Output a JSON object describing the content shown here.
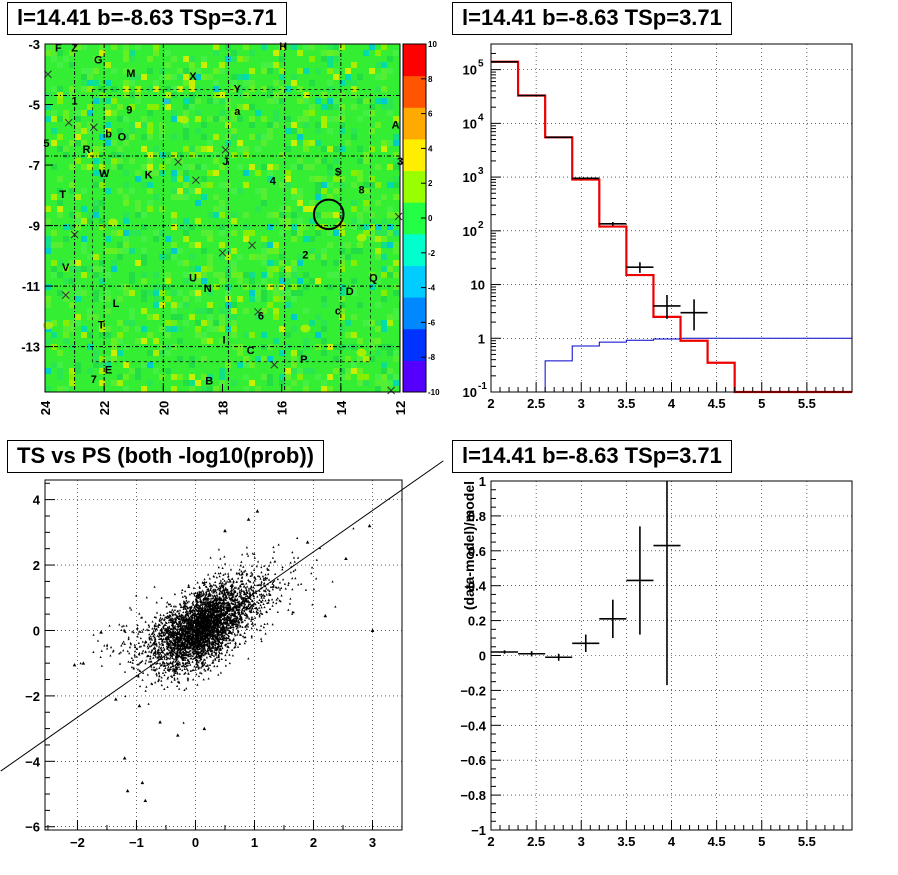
{
  "titles": {
    "map": "l=14.41 b=-8.63 TSp=3.71",
    "hist": "l=14.41 b=-8.63 TSp=3.71",
    "scatter": "TS vs PS (both -log10(prob))",
    "residual": "l=14.41 b=-8.63 TSp=3.71"
  },
  "chart_data": [
    {
      "type": "heatmap",
      "title": "l=14.41 b=-8.63 TSp=3.71",
      "xlim": [
        24,
        12
      ],
      "ylim": [
        -14.5,
        -3
      ],
      "xticks": [
        "24",
        "22",
        "20",
        "18",
        "16",
        "14",
        "12"
      ],
      "yticks": [
        "-3",
        "-5",
        "-7",
        "-9",
        "-11",
        "-13"
      ],
      "zlim": [
        -10,
        10
      ],
      "zticks": [
        "10",
        "8",
        "6",
        "4",
        "2",
        "0",
        "-2",
        "-4",
        "-6",
        "-8",
        "-10"
      ],
      "palette": [
        "#5500ff",
        "#0033ff",
        "#0088ff",
        "#00ccff",
        "#00ffcc",
        "#22ff44",
        "#99ff00",
        "#ffee00",
        "#ffaa00",
        "#ff5500",
        "#ff0000"
      ],
      "source_labels": [
        {
          "t": "F",
          "l": 23.55,
          "b": -3.15
        },
        {
          "t": "Z",
          "l": 23.0,
          "b": -3.15
        },
        {
          "t": "H",
          "l": 15.95,
          "b": -3.1
        },
        {
          "t": "G",
          "l": 22.2,
          "b": -3.55
        },
        {
          "t": "M",
          "l": 21.1,
          "b": -4.0
        },
        {
          "t": "X",
          "l": 19.0,
          "b": -4.1
        },
        {
          "t": "Y",
          "l": 17.5,
          "b": -4.5
        },
        {
          "t": "1",
          "l": 23.0,
          "b": -4.9
        },
        {
          "t": "9",
          "l": 21.15,
          "b": -5.2
        },
        {
          "t": "a",
          "l": 17.5,
          "b": -5.25
        },
        {
          "t": "A",
          "l": 12.15,
          "b": -5.7
        },
        {
          "t": "5",
          "l": 23.95,
          "b": -6.3
        },
        {
          "t": "b",
          "l": 21.85,
          "b": -6.0
        },
        {
          "t": "O",
          "l": 21.4,
          "b": -6.1
        },
        {
          "t": "R",
          "l": 22.6,
          "b": -6.5
        },
        {
          "t": "J",
          "l": 17.9,
          "b": -6.9
        },
        {
          "t": "3",
          "l": 12.0,
          "b": -6.9
        },
        {
          "t": "W",
          "l": 22.0,
          "b": -7.3
        },
        {
          "t": "K",
          "l": 20.5,
          "b": -7.35
        },
        {
          "t": "$",
          "l": 14.1,
          "b": -7.25
        },
        {
          "t": "4",
          "l": 16.3,
          "b": -7.55
        },
        {
          "t": "8",
          "l": 13.3,
          "b": -7.85
        },
        {
          "t": "T",
          "l": 23.4,
          "b": -8.0
        },
        {
          "t": "2",
          "l": 15.2,
          "b": -10.0
        },
        {
          "t": "V",
          "l": 23.3,
          "b": -10.4
        },
        {
          "t": "U",
          "l": 19.0,
          "b": -10.75
        },
        {
          "t": "Q",
          "l": 12.9,
          "b": -10.75
        },
        {
          "t": "N",
          "l": 18.5,
          "b": -11.1
        },
        {
          "t": "D",
          "l": 13.7,
          "b": -11.2
        },
        {
          "t": "L",
          "l": 21.6,
          "b": -11.6
        },
        {
          "t": "c",
          "l": 14.1,
          "b": -11.85
        },
        {
          "t": "6",
          "l": 16.7,
          "b": -12.0
        },
        {
          "t": "T",
          "l": 22.1,
          "b": -12.3
        },
        {
          "t": "I",
          "l": 17.95,
          "b": -12.8
        },
        {
          "t": "C",
          "l": 17.05,
          "b": -13.15
        },
        {
          "t": "P",
          "l": 15.25,
          "b": -13.45
        },
        {
          "t": "E",
          "l": 21.85,
          "b": -13.8
        },
        {
          "t": "7",
          "l": 22.35,
          "b": -14.1
        },
        {
          "t": "B",
          "l": 18.45,
          "b": -14.15
        }
      ],
      "crosses": [
        {
          "l": 23.9,
          "b": -4.0
        },
        {
          "l": 23.2,
          "b": -5.6
        },
        {
          "l": 22.35,
          "b": -5.75
        },
        {
          "l": 17.9,
          "b": -6.5
        },
        {
          "l": 19.5,
          "b": -6.9
        },
        {
          "l": 18.9,
          "b": -7.5
        },
        {
          "l": 23.0,
          "b": -9.3
        },
        {
          "l": 12.05,
          "b": -8.7
        },
        {
          "l": 17.0,
          "b": -9.65
        },
        {
          "l": 18.0,
          "b": -9.9
        },
        {
          "l": 23.3,
          "b": -11.3
        },
        {
          "l": 16.8,
          "b": -11.85
        },
        {
          "l": 16.25,
          "b": -13.6
        },
        {
          "l": 12.3,
          "b": -14.45
        }
      ],
      "circle": {
        "l": 14.41,
        "b": -8.63,
        "r": 0.5
      }
    },
    {
      "type": "line",
      "title": "l=14.41 b=-8.63 TSp=3.71",
      "xlim": [
        2,
        6
      ],
      "ylim": [
        0.1,
        300000
      ],
      "yscale": "log",
      "xticks": [
        "2",
        "2.5",
        "3",
        "3.5",
        "4",
        "4.5",
        "5",
        "5.5"
      ],
      "yticks": [
        "10^-1",
        "1",
        "10",
        "10^2",
        "10^3",
        "10^4",
        "10^5"
      ],
      "grid": true,
      "model_red": {
        "edges": [
          2.0,
          2.3,
          2.6,
          2.9,
          3.2,
          3.5,
          3.8,
          4.1,
          4.4,
          4.7,
          6.0
        ],
        "values": [
          140000,
          33000,
          5500,
          900,
          120,
          15,
          2.5,
          0.9,
          0.35,
          0.1
        ]
      },
      "ps_blue": {
        "edges": [
          2.0,
          2.3,
          2.6,
          2.9,
          3.2,
          3.5,
          3.8,
          4.1,
          6.0
        ],
        "values": [
          0.1,
          0.1,
          0.38,
          0.72,
          0.85,
          0.92,
          0.97,
          1.0
        ]
      },
      "data_points": [
        {
          "x": 2.15,
          "y": 140000,
          "xerr": 0.15,
          "ylo": 139600,
          "yhi": 140400
        },
        {
          "x": 2.45,
          "y": 33000,
          "xerr": 0.15,
          "ylo": 32800,
          "yhi": 33200
        },
        {
          "x": 2.75,
          "y": 5500,
          "xerr": 0.15,
          "ylo": 5420,
          "yhi": 5580
        },
        {
          "x": 3.05,
          "y": 950,
          "xerr": 0.15,
          "ylo": 920,
          "yhi": 980
        },
        {
          "x": 3.35,
          "y": 135,
          "xerr": 0.15,
          "ylo": 124,
          "yhi": 146
        },
        {
          "x": 3.65,
          "y": 21,
          "xerr": 0.15,
          "ylo": 16.5,
          "yhi": 26
        },
        {
          "x": 3.95,
          "y": 4,
          "xerr": 0.15,
          "ylo": 2.3,
          "yhi": 6.4
        },
        {
          "x": 4.25,
          "y": 3,
          "xerr": 0.15,
          "ylo": 1.4,
          "yhi": 5.3
        }
      ]
    },
    {
      "type": "scatter",
      "title": "TS vs PS (both -log10(prob))",
      "xlim": [
        -2.55,
        3.5
      ],
      "ylim": [
        -6.1,
        4.6
      ],
      "xticks": [
        "-2",
        "-1",
        "0",
        "1",
        "2",
        "3"
      ],
      "yticks": [
        "4",
        "2",
        "0",
        "-2",
        "-4",
        "-6"
      ],
      "grid": true,
      "fit_line": {
        "x": [
          -2.55,
          3.5
        ],
        "y": [
          -3.35,
          4.3
        ]
      },
      "n_points": 4000,
      "points": [
        {
          "x": -1.9,
          "y": -1.0
        },
        {
          "x": -1.35,
          "y": -2.1
        },
        {
          "x": -1.2,
          "y": -3.9
        },
        {
          "x": -1.15,
          "y": -4.9
        },
        {
          "x": -0.9,
          "y": -4.65
        },
        {
          "x": -0.85,
          "y": -5.2
        },
        {
          "x": -0.95,
          "y": -2.3
        },
        {
          "x": -0.6,
          "y": -2.8
        },
        {
          "x": -0.3,
          "y": -3.2
        },
        {
          "x": 3.0,
          "y": 0.0
        },
        {
          "x": 2.95,
          "y": 3.2
        },
        {
          "x": 2.55,
          "y": 2.2
        },
        {
          "x": 1.05,
          "y": 3.65
        },
        {
          "x": 0.5,
          "y": 3.05
        },
        {
          "x": 2.2,
          "y": 0.45
        },
        {
          "x": -1.6,
          "y": -0.05
        },
        {
          "x": -2.05,
          "y": -1.05
        },
        {
          "x": 0.15,
          "y": -3.0
        },
        {
          "x": 0.9,
          "y": 3.4
        },
        {
          "x": 1.9,
          "y": 2.7
        }
      ]
    },
    {
      "type": "line",
      "title": "l=14.41 b=-8.63 TSp=3.71",
      "xlim": [
        2,
        6
      ],
      "ylim": [
        -1,
        1
      ],
      "ylabel": "(data-model)/model",
      "xticks": [
        "2",
        "2.5",
        "3",
        "3.5",
        "4",
        "4.5",
        "5",
        "5.5"
      ],
      "yticks": [
        "1",
        "0.8",
        "0.6",
        "0.4",
        "0.2",
        "0",
        "-0.2",
        "-0.4",
        "-0.6",
        "-0.8",
        "-1"
      ],
      "grid": true,
      "data_points": [
        {
          "x": 2.15,
          "y": 0.02,
          "xerr": 0.15,
          "yerr": 0.01
        },
        {
          "x": 2.45,
          "y": 0.01,
          "xerr": 0.15,
          "yerr": 0.015
        },
        {
          "x": 2.75,
          "y": -0.01,
          "xerr": 0.15,
          "yerr": 0.02
        },
        {
          "x": 3.05,
          "y": 0.07,
          "xerr": 0.15,
          "yerr": 0.05
        },
        {
          "x": 3.35,
          "y": 0.21,
          "xerr": 0.15,
          "yerr": 0.11
        },
        {
          "x": 3.65,
          "y": 0.43,
          "xerr": 0.15,
          "yerr": 0.31
        },
        {
          "x": 3.95,
          "y": 0.63,
          "xerr": 0.15,
          "yerr": 0.8
        }
      ]
    }
  ]
}
